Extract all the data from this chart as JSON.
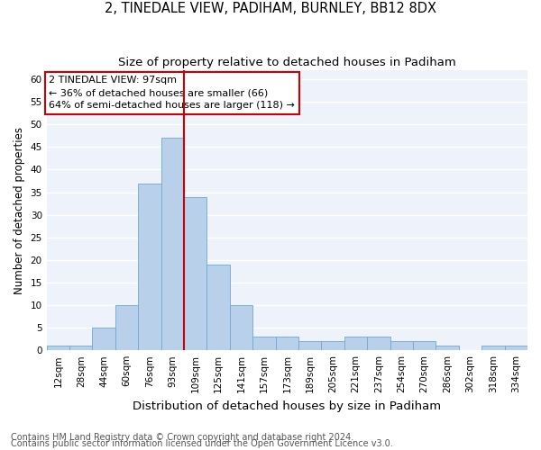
{
  "title1": "2, TINEDALE VIEW, PADIHAM, BURNLEY, BB12 8DX",
  "title2": "Size of property relative to detached houses in Padiham",
  "xlabel": "Distribution of detached houses by size in Padiham",
  "ylabel": "Number of detached properties",
  "categories": [
    "12sqm",
    "28sqm",
    "44sqm",
    "60sqm",
    "76sqm",
    "93sqm",
    "109sqm",
    "125sqm",
    "141sqm",
    "157sqm",
    "173sqm",
    "189sqm",
    "205sqm",
    "221sqm",
    "237sqm",
    "254sqm",
    "270sqm",
    "286sqm",
    "302sqm",
    "318sqm",
    "334sqm"
  ],
  "values": [
    1,
    1,
    5,
    10,
    37,
    47,
    34,
    19,
    10,
    3,
    3,
    2,
    2,
    3,
    3,
    2,
    2,
    1,
    0,
    1,
    1
  ],
  "bar_color": "#b8d0ea",
  "bar_edge_color": "#6aaad4",
  "vline_color": "#cc0000",
  "annotation_line1": "2 TINEDALE VIEW: 97sqm",
  "annotation_line2": "← 36% of detached houses are smaller (66)",
  "annotation_line3": "64% of semi-detached houses are larger (118) →",
  "annotation_box_edge_color": "#cc0000",
  "ylim": [
    0,
    62
  ],
  "yticks": [
    0,
    5,
    10,
    15,
    20,
    25,
    30,
    35,
    40,
    45,
    50,
    55,
    60
  ],
  "footer1": "Contains HM Land Registry data © Crown copyright and database right 2024.",
  "footer2": "Contains public sector information licensed under the Open Government Licence v3.0.",
  "bg_color": "#eef2fb",
  "grid_color": "white",
  "title1_fontsize": 10.5,
  "title2_fontsize": 9.5,
  "ylabel_fontsize": 8.5,
  "xlabel_fontsize": 9.5,
  "annotation_fontsize": 8,
  "tick_fontsize": 7.5,
  "footer_fontsize": 7
}
